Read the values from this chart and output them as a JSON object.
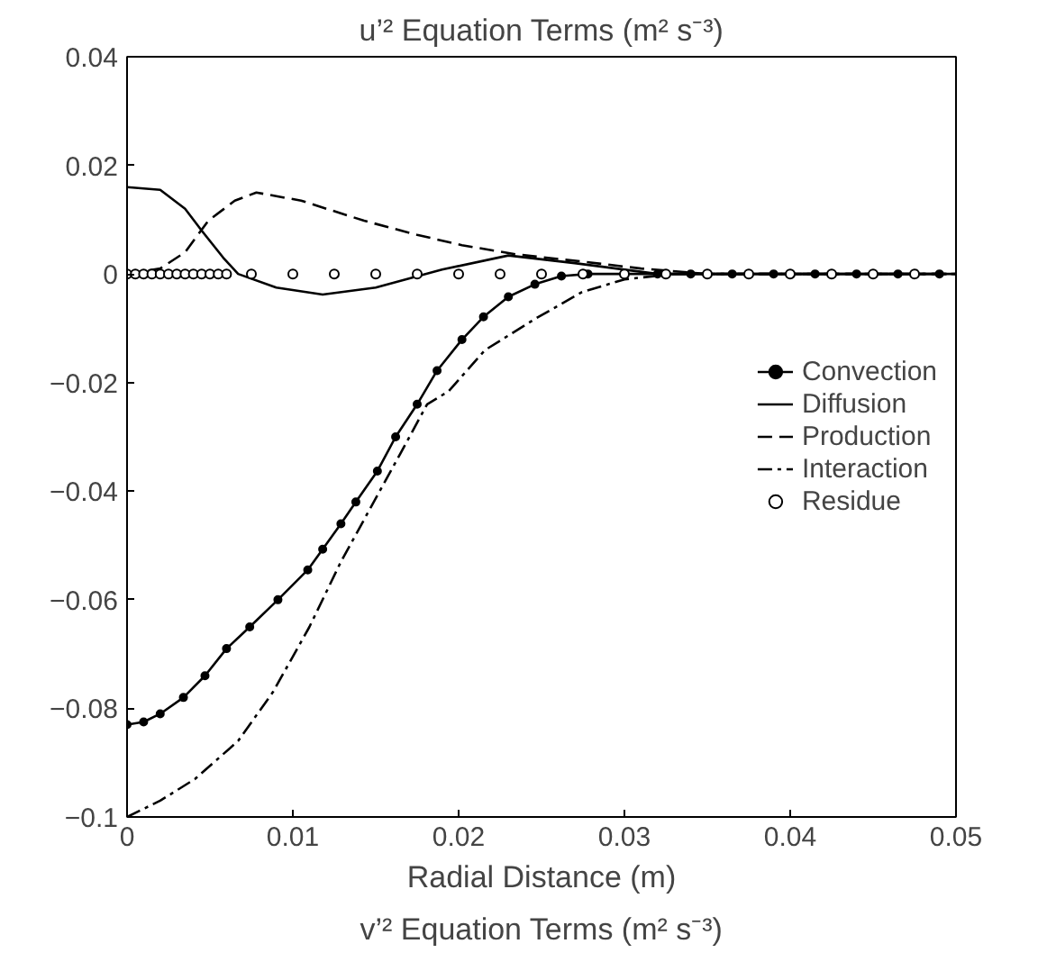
{
  "chart_data": {
    "type": "line",
    "title": "u’² Equation Terms (m² s⁻³)",
    "xlabel": "Radial Distance (m)",
    "annotations": [
      "v’² Equation Terms (m² s⁻³)"
    ],
    "xlim": [
      0,
      0.05
    ],
    "ylim": [
      -0.1,
      0.04
    ],
    "xticks": [
      0,
      0.01,
      0.02,
      0.03,
      0.04,
      0.05
    ],
    "yticks": [
      0.04,
      0.02,
      0,
      {
        "value": -0.02,
        "label": "−0.02"
      },
      {
        "value": -0.04,
        "label": "−0.04"
      },
      {
        "value": -0.06,
        "label": "−0.06"
      },
      {
        "value": -0.08,
        "label": "−0.08"
      },
      {
        "value": -0.1,
        "label": "−0.1"
      }
    ],
    "grid": false,
    "legend": "right",
    "series": [
      {
        "name": "Convection",
        "color": "#000000",
        "marker": "circle",
        "line_style": "solid",
        "x": [
          0,
          0.001,
          0.002,
          0.0034,
          0.0047,
          0.006,
          0.0074,
          0.0091,
          0.0109,
          0.0118,
          0.0129,
          0.0138,
          0.0151,
          0.0162,
          0.0175,
          0.0187,
          0.0202,
          0.0215,
          0.023,
          0.0246,
          0.0262,
          0.0278,
          0.03,
          0.032,
          0.034,
          0.0365,
          0.039,
          0.0415,
          0.044,
          0.0465,
          0.049
        ],
        "values": [
          -0.083,
          -0.0825,
          -0.081,
          -0.078,
          -0.074,
          -0.069,
          -0.065,
          -0.06,
          -0.0545,
          -0.0507,
          -0.046,
          -0.042,
          -0.0363,
          -0.03,
          -0.024,
          -0.0178,
          -0.0121,
          -0.0079,
          -0.0042,
          -0.0019,
          -0.0004,
          0,
          0,
          0,
          0,
          0,
          0,
          0,
          0,
          0,
          0
        ]
      },
      {
        "name": "Diffusion",
        "color": "#000000",
        "line_style": "solid",
        "x": [
          0,
          0.002,
          0.0035,
          0.0045,
          0.0058,
          0.0067,
          0.009,
          0.0118,
          0.015,
          0.019,
          0.023,
          0.027,
          0.032,
          0.05
        ],
        "values": [
          0.016,
          0.0155,
          0.012,
          0.008,
          0.003,
          0,
          -0.0025,
          -0.0038,
          -0.0025,
          0.0008,
          0.0034,
          0.002,
          0,
          0
        ]
      },
      {
        "name": "Production",
        "color": "#000000",
        "line_style": "dashed",
        "x": [
          0,
          0.002,
          0.0035,
          0.0049,
          0.0065,
          0.0078,
          0.0105,
          0.0143,
          0.0175,
          0.0202,
          0.0235,
          0.0274,
          0.031,
          0.035,
          0.05
        ],
        "values": [
          0,
          0.001,
          0.004,
          0.0098,
          0.0135,
          0.015,
          0.0135,
          0.0098,
          0.0072,
          0.0053,
          0.0036,
          0.0023,
          0.001,
          0,
          0
        ]
      },
      {
        "name": "Interaction",
        "color": "#000000",
        "line_style": "dashdot",
        "x": [
          0,
          0.002,
          0.0041,
          0.0067,
          0.0088,
          0.011,
          0.0129,
          0.0147,
          0.0165,
          0.0181,
          0.0194,
          0.0216,
          0.0246,
          0.0274,
          0.03,
          0.033,
          0.05
        ],
        "values": [
          -0.1,
          -0.097,
          -0.093,
          -0.086,
          -0.077,
          -0.065,
          -0.053,
          -0.043,
          -0.033,
          -0.024,
          -0.0216,
          -0.014,
          -0.0083,
          -0.0034,
          -0.001,
          0,
          0
        ]
      },
      {
        "name": "Residue",
        "type": "scatter",
        "color": "#000000",
        "marker": "circle",
        "x": [
          0,
          0.0005,
          0.001,
          0.0015,
          0.002,
          0.0025,
          0.003,
          0.0035,
          0.004,
          0.0045,
          0.005,
          0.0055,
          0.006,
          0.0075,
          0.01,
          0.0125,
          0.015,
          0.0175,
          0.02,
          0.0225,
          0.025,
          0.0275,
          0.03,
          0.0325,
          0.035,
          0.0375,
          0.04,
          0.0425,
          0.045,
          0.0475
        ],
        "values": [
          0,
          0,
          0,
          0,
          0,
          0,
          0,
          0,
          0,
          0,
          0,
          0,
          0,
          0,
          0,
          0,
          0,
          0,
          0,
          0,
          0,
          0,
          0,
          0,
          0,
          0,
          0,
          0,
          0,
          0
        ]
      }
    ]
  }
}
